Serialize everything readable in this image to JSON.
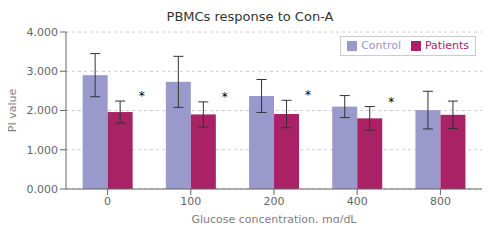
{
  "chart_data": {
    "type": "bar",
    "title": "PBMCs response to Con-A",
    "xlabel": "Glucose concentration, mg/dL",
    "ylabel": "PI value",
    "categories": [
      "0",
      "100",
      "200",
      "400",
      "800"
    ],
    "series": [
      {
        "name": "Control",
        "color": "#9999cc",
        "values": [
          2.9,
          2.73,
          2.37,
          2.1,
          2.01
        ],
        "errors": [
          0.55,
          0.65,
          0.42,
          0.28,
          0.48
        ]
      },
      {
        "name": "Patients",
        "color": "#aa2266",
        "values": [
          1.96,
          1.9,
          1.91,
          1.8,
          1.89
        ],
        "errors": [
          0.28,
          0.32,
          0.35,
          0.3,
          0.35
        ]
      }
    ],
    "ylim": [
      0,
      4.0
    ],
    "yticks": [
      {
        "value": 0,
        "label": "0.000"
      },
      {
        "value": 1,
        "label": "1.000"
      },
      {
        "value": 2,
        "label": "2.000"
      },
      {
        "value": 3,
        "label": "3.000"
      },
      {
        "value": 4,
        "label": "4.000"
      }
    ],
    "grid": true,
    "legend": "upper right",
    "annotations": [
      {
        "text": "*",
        "category": "0",
        "series": "Patients"
      },
      {
        "text": "*",
        "category": "100",
        "series": "Patients"
      },
      {
        "text": "*",
        "category": "200",
        "series": "Patients"
      },
      {
        "text": "*",
        "category": "400",
        "series": "Patients"
      }
    ]
  }
}
